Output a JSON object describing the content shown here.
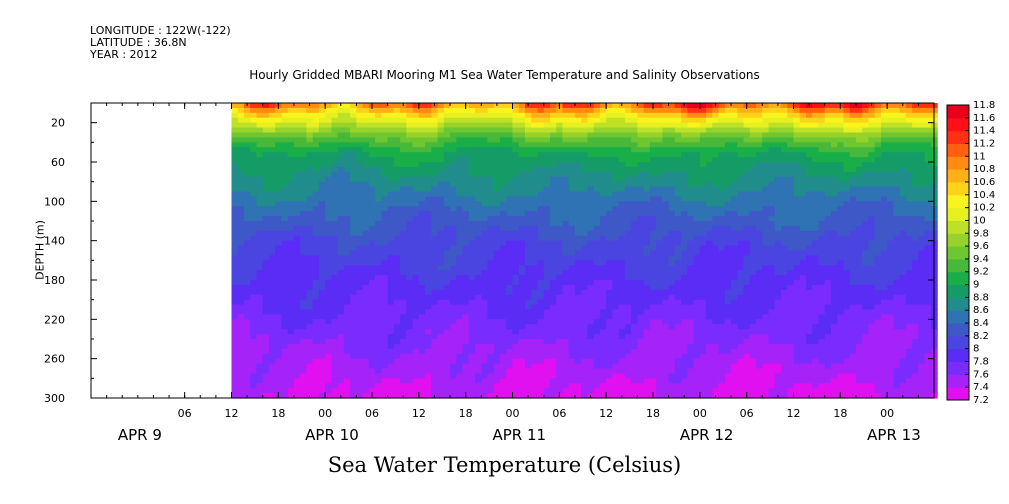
{
  "header": {
    "longitude": "LONGITUDE : 122W(-122)",
    "latitude": "LATITUDE : 36.8N",
    "year": "YEAR : 2012"
  },
  "chart_data": {
    "type": "heatmap",
    "title": "Hourly Gridded MBARI Mooring M1 Sea Water Temperature and Salinity Observations",
    "xlabel": "Sea Water Temperature (Celsius)",
    "ylabel": "DEPTH (m)",
    "x_range_hours": [
      0,
      108
    ],
    "x_ticks": [
      "06",
      "12",
      "18",
      "00",
      "06",
      "12",
      "18",
      "00",
      "06",
      "12",
      "18",
      "00",
      "06",
      "12",
      "18",
      "00"
    ],
    "x_day_labels": [
      "APR  9",
      "APR 10",
      "APR 11",
      "APR 12",
      "APR 13"
    ],
    "data_start": "APR 9 12",
    "ylim": [
      300,
      0
    ],
    "y_ticks": [
      20,
      60,
      100,
      140,
      180,
      220,
      260,
      300
    ],
    "colorbar_levels": [
      7.2,
      7.4,
      7.6,
      7.8,
      8,
      8.2,
      8.4,
      8.6,
      8.8,
      9,
      9.2,
      9.4,
      9.6,
      9.8,
      10,
      10.2,
      10.4,
      10.6,
      10.8,
      11,
      11.2,
      11.4,
      11.6,
      11.8
    ],
    "colorbar_labels": [
      "7.2",
      "7.4",
      "7.6",
      "7.8",
      "8",
      "8.2",
      "8.4",
      "8.6",
      "8.8",
      "9",
      "9.2",
      "9.4",
      "9.6",
      "9.8",
      "10",
      "10.2",
      "10.4",
      "10.6",
      "10.8",
      "11",
      "11.2",
      "11.4",
      "11.6",
      "11.8"
    ],
    "colorbar_colors": [
      "#e010f0",
      "#a522f8",
      "#7a2cff",
      "#5a2cf5",
      "#4a45e0",
      "#3e58c8",
      "#2f73b4",
      "#208c8c",
      "#159c66",
      "#1aae48",
      "#48b83a",
      "#6ec630",
      "#96d22a",
      "#bce126",
      "#e6f020",
      "#f8f41c",
      "#ffd21a",
      "#ffb014",
      "#ff8c10",
      "#ff6010",
      "#ff3014",
      "#ff1018",
      "#e6001c",
      "#c00018"
    ],
    "depth_profile": [
      {
        "depth": 0,
        "temp": 11.0
      },
      {
        "depth": 10,
        "temp": 10.4
      },
      {
        "depth": 20,
        "temp": 10.0
      },
      {
        "depth": 35,
        "temp": 9.4
      },
      {
        "depth": 50,
        "temp": 9.0
      },
      {
        "depth": 70,
        "temp": 8.8
      },
      {
        "depth": 100,
        "temp": 8.5
      },
      {
        "depth": 140,
        "temp": 8.15
      },
      {
        "depth": 180,
        "temp": 7.95
      },
      {
        "depth": 220,
        "temp": 7.75
      },
      {
        "depth": 260,
        "temp": 7.55
      },
      {
        "depth": 300,
        "temp": 7.35
      }
    ]
  }
}
